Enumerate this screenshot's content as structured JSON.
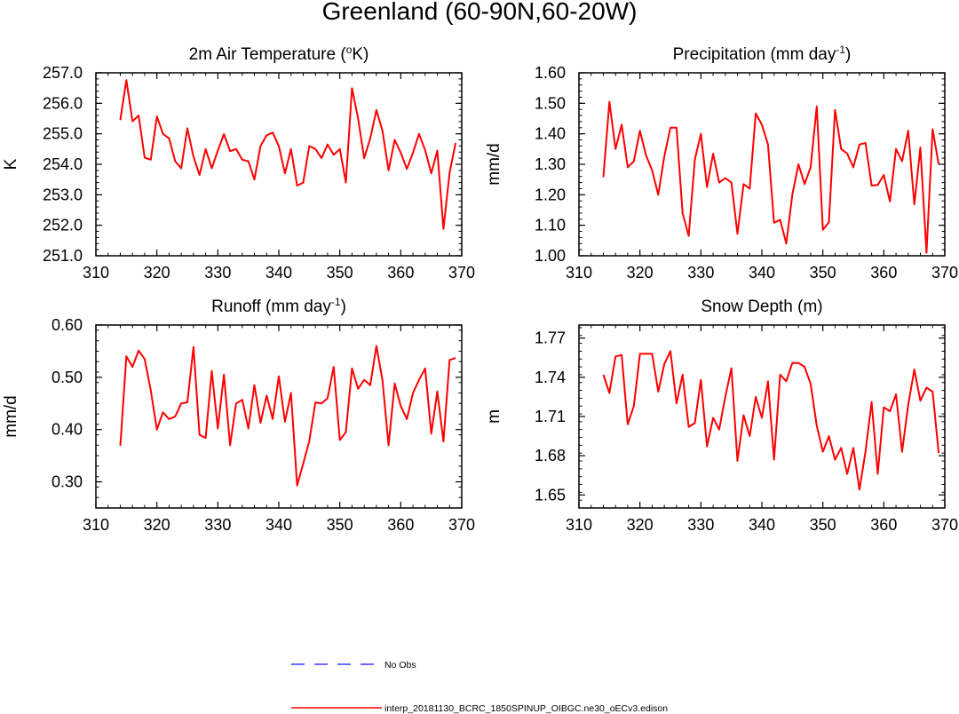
{
  "figure": {
    "title": "Greenland (60-90N,60-20W)"
  },
  "colors": {
    "model": "#ff0000",
    "obs": "#3a3aff",
    "axis": "#000000"
  },
  "legend": {
    "entries": [
      {
        "label": "No Obs",
        "style": "dashed",
        "color": "#3a3aff"
      },
      {
        "label": "interp_20181130_BCRC_1850SPINUP_OIBGC.ne30_oECv3.edison",
        "style": "solid",
        "color": "#ff0000"
      }
    ]
  },
  "chart_data": [
    {
      "type": "line",
      "title_main": "2m Air Temperature (",
      "title_sup": "o",
      "title_tail": "K)",
      "ylabel": "K",
      "xlabel": "",
      "xlim": [
        310,
        370
      ],
      "xticks": [
        310,
        320,
        330,
        340,
        350,
        360,
        370
      ],
      "ylim": [
        251.0,
        257.0
      ],
      "yticks": [
        251.0,
        252.0,
        253.0,
        254.0,
        255.0,
        256.0,
        257.0
      ],
      "ytick_labels": [
        "251.0",
        "252.0",
        "253.0",
        "254.0",
        "255.0",
        "256.0",
        "257.0"
      ],
      "x": [
        314,
        315,
        316,
        317,
        318,
        319,
        320,
        321,
        322,
        323,
        324,
        325,
        326,
        327,
        328,
        329,
        330,
        331,
        332,
        333,
        334,
        335,
        336,
        337,
        338,
        339,
        340,
        341,
        342,
        343,
        344,
        345,
        346,
        347,
        348,
        349,
        350,
        351,
        352,
        353,
        354,
        355,
        356,
        357,
        358,
        359,
        360,
        361,
        362,
        363,
        364,
        365,
        366,
        367,
        368,
        369
      ],
      "series": [
        {
          "name": "interp_20181130_BCRC_1850SPINUP_OIBGC.ne30_oECv3.edison",
          "values": [
            255.45,
            256.76,
            255.41,
            255.6,
            254.22,
            254.15,
            255.57,
            255.0,
            254.85,
            254.1,
            253.87,
            255.18,
            254.25,
            253.65,
            254.5,
            253.87,
            254.45,
            254.99,
            254.43,
            254.5,
            254.15,
            254.1,
            253.5,
            254.6,
            254.95,
            255.04,
            254.6,
            253.7,
            254.5,
            253.3,
            253.4,
            254.6,
            254.5,
            254.2,
            254.65,
            254.31,
            254.5,
            253.4,
            256.5,
            255.5,
            254.2,
            254.85,
            255.78,
            255.1,
            253.8,
            254.8,
            254.38,
            253.85,
            254.38,
            255.0,
            254.46,
            253.7,
            254.45,
            251.88,
            253.72,
            254.7
          ]
        }
      ]
    },
    {
      "type": "line",
      "title_main": "Precipitation (mm day",
      "title_sup": "-1",
      "title_tail": ")",
      "ylabel": "mm/d",
      "xlabel": "",
      "xlim": [
        310,
        370
      ],
      "xticks": [
        310,
        320,
        330,
        340,
        350,
        360,
        370
      ],
      "ylim": [
        1.0,
        1.6
      ],
      "yticks": [
        1.0,
        1.1,
        1.2,
        1.3,
        1.4,
        1.5,
        1.6
      ],
      "ytick_labels": [
        "1.00",
        "1.10",
        "1.20",
        "1.30",
        "1.40",
        "1.50",
        "1.60"
      ],
      "x": [
        314,
        315,
        316,
        317,
        318,
        319,
        320,
        321,
        322,
        323,
        324,
        325,
        326,
        327,
        328,
        329,
        330,
        331,
        332,
        333,
        334,
        335,
        336,
        337,
        338,
        339,
        340,
        341,
        342,
        343,
        344,
        345,
        346,
        347,
        348,
        349,
        350,
        351,
        352,
        353,
        354,
        355,
        356,
        357,
        358,
        359,
        360,
        361,
        362,
        363,
        364,
        365,
        366,
        367,
        368,
        369
      ],
      "series": [
        {
          "name": "interp_20181130_BCRC_1850SPINUP_OIBGC.ne30_oECv3.edison",
          "values": [
            1.258,
            1.505,
            1.35,
            1.43,
            1.29,
            1.31,
            1.41,
            1.33,
            1.28,
            1.2,
            1.325,
            1.42,
            1.42,
            1.14,
            1.065,
            1.315,
            1.4,
            1.225,
            1.335,
            1.24,
            1.255,
            1.24,
            1.072,
            1.235,
            1.22,
            1.467,
            1.43,
            1.365,
            1.108,
            1.118,
            1.04,
            1.2,
            1.3,
            1.235,
            1.29,
            1.49,
            1.085,
            1.11,
            1.478,
            1.35,
            1.335,
            1.29,
            1.365,
            1.37,
            1.23,
            1.232,
            1.265,
            1.178,
            1.35,
            1.31,
            1.41,
            1.168,
            1.355,
            1.01,
            1.415,
            1.3
          ]
        }
      ]
    },
    {
      "type": "line",
      "title_main": "Runoff (mm day",
      "title_sup": "-1",
      "title_tail": ")",
      "ylabel": "mm/d",
      "xlabel": "",
      "xlim": [
        310,
        370
      ],
      "xticks": [
        310,
        320,
        330,
        340,
        350,
        360,
        370
      ],
      "ylim": [
        0.25,
        0.6
      ],
      "yticks": [
        0.3,
        0.4,
        0.5,
        0.6
      ],
      "ytick_labels": [
        "0.30",
        "0.40",
        "0.50",
        "0.60"
      ],
      "x": [
        314,
        315,
        316,
        317,
        318,
        319,
        320,
        321,
        322,
        323,
        324,
        325,
        326,
        327,
        328,
        329,
        330,
        331,
        332,
        333,
        334,
        335,
        336,
        337,
        338,
        339,
        340,
        341,
        342,
        343,
        344,
        345,
        346,
        347,
        348,
        349,
        350,
        351,
        352,
        353,
        354,
        355,
        356,
        357,
        358,
        359,
        360,
        361,
        362,
        363,
        364,
        365,
        366,
        367,
        368,
        369
      ],
      "series": [
        {
          "name": "interp_20181130_BCRC_1850SPINUP_OIBGC.ne30_oECv3.edison",
          "values": [
            0.369,
            0.54,
            0.52,
            0.551,
            0.535,
            0.475,
            0.4,
            0.433,
            0.42,
            0.425,
            0.45,
            0.452,
            0.558,
            0.39,
            0.384,
            0.512,
            0.402,
            0.505,
            0.37,
            0.45,
            0.457,
            0.402,
            0.485,
            0.413,
            0.465,
            0.42,
            0.502,
            0.415,
            0.47,
            0.293,
            0.335,
            0.378,
            0.452,
            0.45,
            0.46,
            0.52,
            0.38,
            0.395,
            0.517,
            0.478,
            0.495,
            0.485,
            0.56,
            0.495,
            0.37,
            0.488,
            0.445,
            0.42,
            0.47,
            0.495,
            0.517,
            0.392,
            0.473,
            0.377,
            0.533,
            0.537
          ]
        }
      ]
    },
    {
      "type": "line",
      "title_main": "Snow Depth (m)",
      "title_sup": "",
      "title_tail": "",
      "ylabel": "m",
      "xlabel": "",
      "xlim": [
        310,
        370
      ],
      "xticks": [
        310,
        320,
        330,
        340,
        350,
        360,
        370
      ],
      "ylim": [
        1.64,
        1.78
      ],
      "yticks": [
        1.65,
        1.68,
        1.71,
        1.74,
        1.77
      ],
      "ytick_labels": [
        "1.65",
        "1.68",
        "1.71",
        "1.74",
        "1.77"
      ],
      "x": [
        314,
        315,
        316,
        317,
        318,
        319,
        320,
        321,
        322,
        323,
        324,
        325,
        326,
        327,
        328,
        329,
        330,
        331,
        332,
        333,
        334,
        335,
        336,
        337,
        338,
        339,
        340,
        341,
        342,
        343,
        344,
        345,
        346,
        347,
        348,
        349,
        350,
        351,
        352,
        353,
        354,
        355,
        356,
        357,
        358,
        359,
        360,
        361,
        362,
        363,
        364,
        365,
        366,
        367,
        368,
        369
      ],
      "series": [
        {
          "name": "interp_20181130_BCRC_1850SPINUP_OIBGC.ne30_oECv3.edison",
          "values": [
            1.742,
            1.728,
            1.756,
            1.757,
            1.704,
            1.718,
            1.758,
            1.758,
            1.758,
            1.729,
            1.75,
            1.76,
            1.72,
            1.742,
            1.702,
            1.705,
            1.738,
            1.687,
            1.709,
            1.7,
            1.725,
            1.747,
            1.676,
            1.711,
            1.695,
            1.725,
            1.709,
            1.737,
            1.677,
            1.742,
            1.737,
            1.751,
            1.751,
            1.748,
            1.735,
            1.703,
            1.683,
            1.695,
            1.677,
            1.686,
            1.666,
            1.686,
            1.654,
            1.683,
            1.721,
            1.666,
            1.717,
            1.714,
            1.727,
            1.683,
            1.719,
            1.746,
            1.722,
            1.732,
            1.729,
            1.682
          ]
        }
      ]
    }
  ]
}
